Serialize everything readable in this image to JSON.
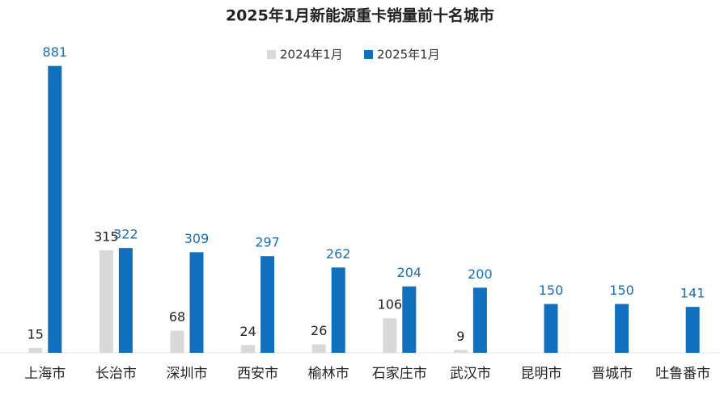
{
  "chart_data": {
    "type": "bar",
    "title": "2025年1月新能源重卡销量前十名城市",
    "categories": [
      "上海市",
      "长治市",
      "深圳市",
      "西安市",
      "榆林市",
      "石家庄市",
      "武汉市",
      "昆明市",
      "晋城市",
      "吐鲁番市"
    ],
    "series": [
      {
        "name": "2024年1月",
        "color": "#d9d9d9",
        "label_color": "#222222",
        "values": [
          15,
          315,
          68,
          24,
          26,
          106,
          9,
          null,
          null,
          null
        ]
      },
      {
        "name": "2025年1月",
        "color": "#1170bd",
        "label_color": "#1a6fb0",
        "values": [
          881,
          322,
          309,
          297,
          262,
          204,
          200,
          150,
          150,
          141
        ]
      }
    ],
    "ylim": [
      0,
      900
    ]
  }
}
